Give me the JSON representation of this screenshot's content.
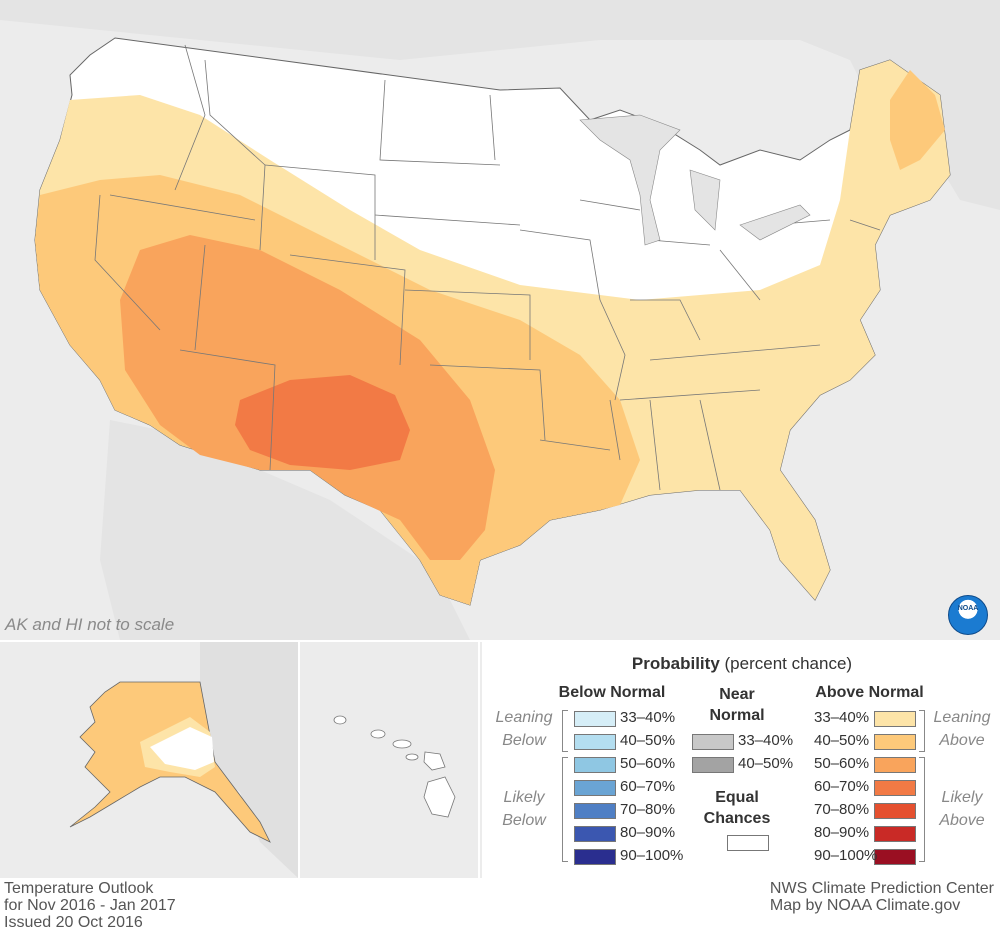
{
  "map": {
    "ak_hi_note": "AK and HI not to scale"
  },
  "legend": {
    "title_bold": "Probability",
    "title_rest": " (percent chance)",
    "below_normal": {
      "heading": "Below Normal",
      "leaning_label_1": "Leaning",
      "leaning_label_2": "Below",
      "likely_label_1": "Likely",
      "likely_label_2": "Below",
      "items": [
        {
          "label": "33–40%",
          "color": "#d6eef7"
        },
        {
          "label": "40–50%",
          "color": "#b4def0"
        },
        {
          "label": "50–60%",
          "color": "#8fc7e3"
        },
        {
          "label": "60–70%",
          "color": "#6aa4d4"
        },
        {
          "label": "70–80%",
          "color": "#4f7fc4"
        },
        {
          "label": "80–90%",
          "color": "#3b57b0"
        },
        {
          "label": "90–100%",
          "color": "#2a2e8f"
        }
      ]
    },
    "near_normal": {
      "heading_1": "Near",
      "heading_2": "Normal",
      "items": [
        {
          "label": "33–40%",
          "color": "#c8c8c8"
        },
        {
          "label": "40–50%",
          "color": "#a3a3a3"
        }
      ],
      "equal_1": "Equal",
      "equal_2": "Chances",
      "equal_color": "#ffffff"
    },
    "above_normal": {
      "heading": "Above Normal",
      "leaning_label_1": "Leaning",
      "leaning_label_2": "Above",
      "likely_label_1": "Likely",
      "likely_label_2": "Above",
      "items": [
        {
          "label": "33–40%",
          "color": "#fde4a8"
        },
        {
          "label": "40–50%",
          "color": "#fdc97a"
        },
        {
          "label": "50–60%",
          "color": "#f9a45c"
        },
        {
          "label": "60–70%",
          "color": "#f27a45"
        },
        {
          "label": "70–80%",
          "color": "#e5502f"
        },
        {
          "label": "80–90%",
          "color": "#c92a26"
        },
        {
          "label": "90–100%",
          "color": "#9a0f22"
        }
      ]
    }
  },
  "footer": {
    "left_1": "Temperature Outlook",
    "left_2": "for Nov 2016 - Jan 2017",
    "left_3": "Issued 20 Oct 2016",
    "right_1": "NWS Climate Prediction Center",
    "right_2": "Map by NOAA Climate.gov"
  },
  "logo": {
    "text": "NOAA"
  }
}
